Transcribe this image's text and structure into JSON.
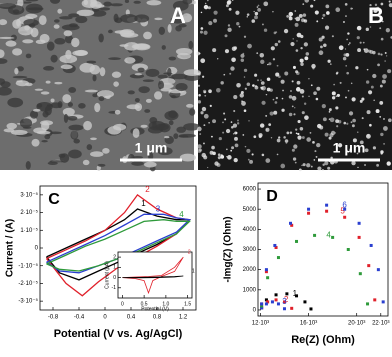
{
  "images": [
    {
      "label": "A",
      "scale_bar": "1 μm"
    },
    {
      "label": "B",
      "scale_bar": "1 μm"
    }
  ],
  "chart_data": [
    {
      "type": "line",
      "panel": "C",
      "xlabel": "Potential (V vs. Ag/AgCl)",
      "ylabel": "Current / (A)",
      "xlim": [
        -1.0,
        1.4
      ],
      "xticks": [
        -0.8,
        -0.4,
        0,
        0.4,
        0.8,
        1.2
      ],
      "ylim": [
        -3.5e-05,
        3.5e-05
      ],
      "yticks": [
        {
          "value": -3e-05,
          "label": "-3·10⁻⁵"
        },
        {
          "value": -2e-05,
          "label": "-2·10⁻⁵"
        },
        {
          "value": -1e-05,
          "label": "-1·10⁻⁵"
        },
        0,
        {
          "value": 1e-05,
          "label": "1·10⁻⁵"
        },
        {
          "value": 2e-05,
          "label": "2·10⁻⁵"
        },
        {
          "value": 3e-05,
          "label": "3·10⁻⁵"
        }
      ],
      "series": [
        {
          "name": "1",
          "color": "#000000",
          "x": [
            -0.9,
            -0.6,
            -0.3,
            0,
            0.3,
            0.5,
            0.8,
            1.1,
            1.3,
            1.1,
            0.8,
            0.5,
            0.2,
            -0.1,
            -0.4,
            -0.7,
            -0.9
          ],
          "values": [
            -5e-06,
            0,
            5e-06,
            1e-05,
            1.6e-05,
            2.2e-05,
            1.8e-05,
            1.6e-05,
            1.6e-05,
            8e-06,
            2e-06,
            -3e-06,
            -8e-06,
            -1.3e-05,
            -1.8e-05,
            -1.4e-05,
            -5e-06
          ]
        },
        {
          "name": "2",
          "color": "#e0202a",
          "x": [
            -0.9,
            -0.6,
            -0.3,
            0,
            0.3,
            0.5,
            0.8,
            1.1,
            1.3,
            1.1,
            0.8,
            0.5,
            0.2,
            -0.1,
            -0.35,
            -0.6,
            -0.9
          ],
          "values": [
            -6e-06,
            -1e-06,
            4e-06,
            1e-05,
            2e-05,
            3e-05,
            2.2e-05,
            1.7e-05,
            1.6e-05,
            8e-06,
            1e-06,
            -5e-06,
            -1.1e-05,
            -1.9e-05,
            -2.7e-05,
            -2e-05,
            -6e-06
          ]
        },
        {
          "name": "3",
          "color": "#2a3fd0",
          "x": [
            -0.9,
            -0.6,
            -0.3,
            0,
            0.3,
            0.6,
            0.9,
            1.1,
            1.3,
            1.1,
            0.8,
            0.5,
            0.2,
            -0.1,
            -0.4,
            -0.7,
            -0.9
          ],
          "values": [
            -8e-06,
            -3e-06,
            2e-06,
            7e-06,
            1.3e-05,
            1.9e-05,
            1.9e-05,
            1.7e-05,
            1.6e-05,
            9e-06,
            4e-06,
            -1e-06,
            -6e-06,
            -1e-05,
            -1.4e-05,
            -1.3e-05,
            -8e-06
          ]
        },
        {
          "name": "4",
          "color": "#2e9a3a",
          "x": [
            -0.9,
            -0.6,
            -0.3,
            0,
            0.3,
            0.6,
            0.9,
            1.1,
            1.3,
            1.1,
            0.8,
            0.5,
            0.2,
            -0.1,
            -0.4,
            -0.7,
            -0.9
          ],
          "values": [
            -9e-06,
            -4e-06,
            1e-06,
            5e-06,
            1e-05,
            1.5e-05,
            1.6e-05,
            1.5e-05,
            1.5e-05,
            8e-06,
            3e-06,
            -2e-06,
            -6e-06,
            -1e-05,
            -1.3e-05,
            -1.2e-05,
            -9e-06
          ]
        }
      ]
    },
    {
      "type": "line",
      "xlabel": "Potential (V)",
      "ylabel": "Current (μA)",
      "xlim": [
        -0.1,
        1.6
      ],
      "xticks": [
        0,
        0.5,
        {
          "value": 1,
          "label": "1.0"
        },
        1.5
      ],
      "ylim": [
        -2,
        2.5
      ],
      "yticks": [
        -1,
        0,
        1,
        2
      ],
      "series": [
        {
          "name": "2",
          "color": "#e0202a",
          "x": [
            0,
            0.3,
            0.6,
            0.9,
            1.2,
            1.4,
            1.2,
            0.9,
            0.7,
            0.6,
            0.5,
            0.3,
            0
          ],
          "values": [
            0,
            0.05,
            0.1,
            0.2,
            1.0,
            2.0,
            0.6,
            0.1,
            -0.3,
            -1.5,
            -0.3,
            -0.1,
            0
          ]
        },
        {
          "name": "1",
          "color": "#000000",
          "x": [
            0,
            0.4,
            0.8,
            1.2,
            1.4,
            1.2,
            0.8,
            0.4,
            0
          ],
          "values": [
            0,
            0.02,
            0.05,
            0.1,
            0.15,
            0.05,
            0,
            -0.03,
            0
          ]
        }
      ]
    },
    {
      "type": "scatter",
      "panel": "D",
      "xlabel": "Re(Z) (Ohm)",
      "ylabel": "-Img(Z) (Ohm)",
      "xlim": [
        11800,
        22600
      ],
      "xticks": [
        {
          "value": 12000,
          "label": "12·10³"
        },
        {
          "value": 16000,
          "label": "16·10³"
        },
        {
          "value": 20000,
          "label": "20·10³"
        },
        {
          "value": 22000,
          "label": "22·10³"
        }
      ],
      "ylim": [
        -300,
        6300
      ],
      "yticks": [
        0,
        1000,
        2000,
        3000,
        4000,
        5000,
        6000
      ],
      "series": [
        {
          "name": "1",
          "color": "#000000",
          "x": [
            12100,
            12500,
            13300,
            14200,
            15000,
            15700,
            16200
          ],
          "values": [
            100,
            500,
            750,
            800,
            700,
            400,
            50
          ]
        },
        {
          "name": "2",
          "color": "#e0202a",
          "x": [
            12100,
            12600,
            13300,
            14000,
            14600
          ],
          "values": [
            100,
            400,
            500,
            400,
            80
          ]
        },
        {
          "name": "3",
          "color": "#2a3fd0",
          "x": [
            12100,
            12500,
            13000,
            13500,
            14000
          ],
          "values": [
            100,
            300,
            400,
            300,
            60
          ]
        },
        {
          "name": "4",
          "color": "#2e9a3a",
          "x": [
            12100,
            12600,
            13500,
            15000,
            16500,
            18000,
            19300,
            20300,
            20900
          ],
          "values": [
            200,
            1600,
            2600,
            3400,
            3700,
            3600,
            3000,
            1800,
            300
          ]
        },
        {
          "name": "5",
          "color": "#e0202a",
          "x": [
            12100,
            12500,
            13300,
            14600,
            16000,
            17500,
            19000,
            20200,
            21000,
            21500
          ],
          "values": [
            300,
            1900,
            3100,
            4200,
            4800,
            4900,
            4600,
            3600,
            2200,
            500
          ]
        },
        {
          "name": "6",
          "color": "#2a3fd0",
          "x": [
            12100,
            12500,
            13200,
            14500,
            16000,
            17500,
            19000,
            20200,
            21200,
            21800,
            22200
          ],
          "values": [
            300,
            2000,
            3200,
            4300,
            5000,
            5200,
            5000,
            4300,
            3200,
            2000,
            400
          ]
        }
      ]
    }
  ]
}
